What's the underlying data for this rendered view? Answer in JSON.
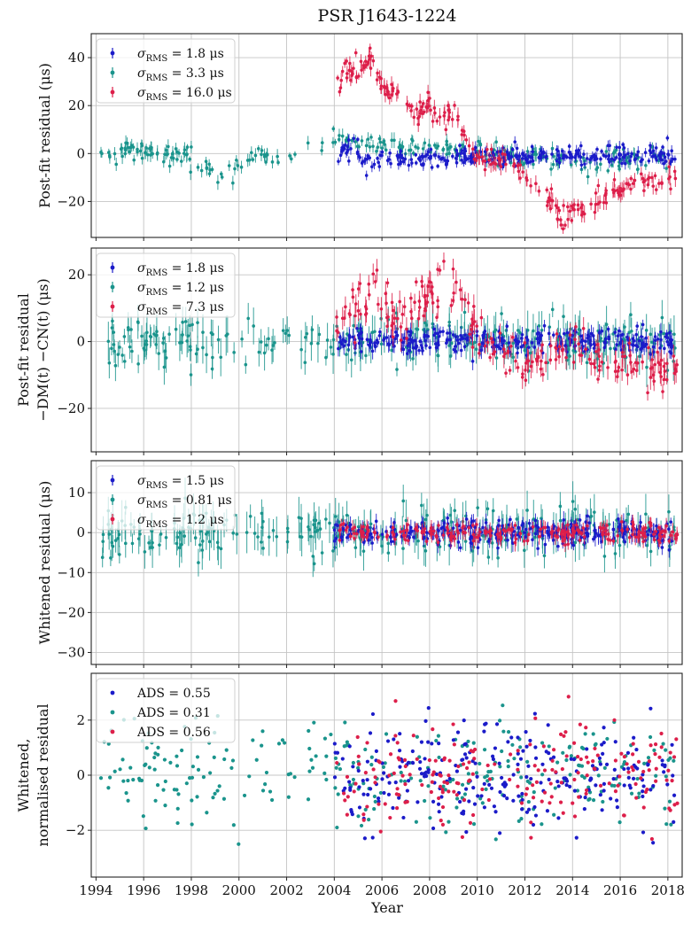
{
  "figure": {
    "title": "PSR J1643-1224",
    "xlabel": "Year"
  },
  "colors": {
    "blue": "#1b1bc9",
    "teal": "#1a948c",
    "red": "#dd1f4a"
  },
  "chart_data": [
    {
      "type": "scatter",
      "panel": "post-fit",
      "ylabel": [
        "Post-fit residual (μs)"
      ],
      "xlim": [
        1993.8,
        2018.6
      ],
      "ylim": [
        -35,
        50
      ],
      "xticks": [
        1994,
        1996,
        1998,
        2000,
        2002,
        2004,
        2006,
        2008,
        2010,
        2012,
        2014,
        2016,
        2018
      ],
      "yticks": [
        -20,
        0,
        20,
        40
      ],
      "legend": {
        "placement": "top-left",
        "entries": [
          {
            "pre": "σ",
            "sub": "RMS",
            "post": " = 1.8 μs",
            "color": "blue"
          },
          {
            "pre": "σ",
            "sub": "RMS",
            "post": " = 3.3 μs",
            "color": "teal"
          },
          {
            "pre": "σ",
            "sub": "RMS",
            "post": " = 16.0 μs",
            "color": "red"
          }
        ]
      },
      "series": [
        {
          "name": "σRMS = 1.8 μs",
          "color": "blue",
          "errorbars": true,
          "x_range": [
            2004.0,
            2018.3
          ],
          "n": 300,
          "seed": 11,
          "trend_x": [
            2004.0,
            2004.6,
            2005.2,
            2006.0,
            2007.0,
            2008.0,
            2009.0,
            2010.0,
            2012.0,
            2014.0,
            2016.0,
            2018.3
          ],
          "trend_y": [
            -1,
            2,
            -3,
            -2,
            -2,
            -2,
            -1,
            -1,
            -1,
            -1,
            -1,
            -1
          ],
          "scatter": 2.0,
          "err": 1.8
        },
        {
          "name": "σRMS = 3.3 μs",
          "color": "teal",
          "errorbars": true,
          "x_range": [
            1994.2,
            2018.3
          ],
          "n": 280,
          "seed": 23,
          "trend_x": [
            1994.2,
            1995.0,
            1996.0,
            1997.0,
            1998.0,
            1999.0,
            2000.5,
            2002.0,
            2003.0,
            2004.3,
            2005.5,
            2007.0,
            2008.5,
            2009.5,
            2010.5,
            2012.0,
            2014.0,
            2015.0,
            2016.0,
            2017.0,
            2018.3
          ],
          "trend_y": [
            0,
            0,
            2,
            0,
            -2,
            -8,
            -2,
            -1,
            3,
            6,
            4,
            3,
            2,
            1,
            0,
            -1,
            -4,
            -5,
            -3,
            -2,
            -1
          ],
          "scatter": 2.0,
          "err": 2.2
        },
        {
          "name": "σRMS = 16.0 μs",
          "color": "red",
          "errorbars": true,
          "x_range": [
            2004.1,
            2018.4
          ],
          "n": 230,
          "seed": 37,
          "trend_x": [
            2004.1,
            2004.6,
            2005.0,
            2005.5,
            2006.0,
            2006.8,
            2007.5,
            2008.0,
            2008.3,
            2009.0,
            2009.5,
            2010.0,
            2011.0,
            2012.0,
            2013.0,
            2013.6,
            2014.5,
            2015.5,
            2016.5,
            2017.5,
            2018.4
          ],
          "trend_y": [
            28,
            36,
            34,
            40,
            28,
            24,
            16,
            22,
            14,
            18,
            8,
            -2,
            -4,
            -10,
            -20,
            -27,
            -22,
            -16,
            -14,
            -12,
            -10
          ],
          "scatter": 2.5,
          "err": 2.5
        }
      ]
    },
    {
      "type": "scatter",
      "panel": "post-fit minus DM and CN",
      "ylabel": [
        "Post-fit residual",
        "−DM(t) −CN(t) (μs)"
      ],
      "xlim": [
        1993.8,
        2018.6
      ],
      "ylim": [
        -33,
        28
      ],
      "xticks": [
        1994,
        1996,
        1998,
        2000,
        2002,
        2004,
        2006,
        2008,
        2010,
        2012,
        2014,
        2016,
        2018
      ],
      "yticks": [
        -20,
        0,
        20
      ],
      "legend": {
        "placement": "top-left",
        "entries": [
          {
            "pre": "σ",
            "sub": "RMS",
            "post": " = 1.8 μs",
            "color": "blue"
          },
          {
            "pre": "σ",
            "sub": "RMS",
            "post": " = 1.2 μs",
            "color": "teal"
          },
          {
            "pre": "σ",
            "sub": "RMS",
            "post": " = 7.3 μs",
            "color": "red"
          }
        ]
      },
      "series": [
        {
          "name": "σRMS = 1.8 μs",
          "color": "blue",
          "errorbars": true,
          "x_range": [
            2004.0,
            2018.3
          ],
          "n": 300,
          "seed": 41,
          "trend_x": [
            2004.0,
            2018.3
          ],
          "trend_y": [
            0,
            0
          ],
          "scatter": 1.8,
          "err": 1.8
        },
        {
          "name": "σRMS = 1.2 μs",
          "color": "teal",
          "errorbars": true,
          "x_range": [
            1994.2,
            2018.3
          ],
          "n": 280,
          "seed": 53,
          "trend_x": [
            1994.2,
            2004.0,
            2005.0,
            2018.3
          ],
          "trend_y": [
            0,
            0,
            0,
            0
          ],
          "scatter": 3.5,
          "err": 4.0
        },
        {
          "name": "σRMS = 7.3 μs",
          "color": "red",
          "errorbars": true,
          "x_range": [
            2004.1,
            2018.4
          ],
          "n": 220,
          "seed": 67,
          "trend_x": [
            2004.1,
            2005.0,
            2005.5,
            2006.5,
            2007.5,
            2008.0,
            2008.5,
            2009.2,
            2009.8,
            2010.5,
            2012.0,
            2013.0,
            2014.0,
            2015.0,
            2016.0,
            2017.0,
            2018.4
          ],
          "trend_y": [
            5,
            10,
            18,
            6,
            10,
            14,
            20,
            14,
            4,
            0,
            -8,
            -4,
            -2,
            -6,
            -6,
            -8,
            -8
          ],
          "scatter": 3.0,
          "err": 2.5
        }
      ]
    },
    {
      "type": "scatter",
      "panel": "whitened",
      "ylabel": [
        "Whitened residual (μs)"
      ],
      "xlim": [
        1993.8,
        2018.6
      ],
      "ylim": [
        -33,
        18
      ],
      "xticks": [
        1994,
        1996,
        1998,
        2000,
        2002,
        2004,
        2006,
        2008,
        2010,
        2012,
        2014,
        2016,
        2018
      ],
      "yticks": [
        -30,
        -20,
        -10,
        0,
        10
      ],
      "legend": {
        "placement": "top-left",
        "entries": [
          {
            "pre": "σ",
            "sub": "RMS",
            "post": " = 1.5 μs",
            "color": "blue"
          },
          {
            "pre": "σ",
            "sub": "RMS",
            "post": " = 0.81 μs",
            "color": "teal"
          },
          {
            "pre": "σ",
            "sub": "RMS",
            "post": " = 1.2 μs",
            "color": "red"
          }
        ]
      },
      "series": [
        {
          "name": "σRMS = 1.5 μs",
          "color": "blue",
          "errorbars": true,
          "x_range": [
            2004.0,
            2018.3
          ],
          "n": 300,
          "seed": 71,
          "trend_x": [
            2004.0,
            2018.3
          ],
          "trend_y": [
            0,
            0
          ],
          "scatter": 1.5,
          "err": 1.6
        },
        {
          "name": "σRMS = 0.81 μs",
          "color": "teal",
          "errorbars": true,
          "x_range": [
            1994.2,
            2018.3
          ],
          "n": 280,
          "seed": 83,
          "trend_x": [
            1994.2,
            2004.0,
            2004.5,
            2018.3
          ],
          "trend_y": [
            0,
            0,
            0,
            0
          ],
          "scatter": 3.0,
          "err": 3.5
        },
        {
          "name": "σRMS = 1.2 μs",
          "color": "red",
          "errorbars": true,
          "x_range": [
            2004.1,
            2018.4
          ],
          "n": 220,
          "seed": 97,
          "trend_x": [
            2004.1,
            2018.4
          ],
          "trend_y": [
            0,
            0
          ],
          "scatter": 1.2,
          "err": 1.5
        }
      ]
    },
    {
      "type": "scatter",
      "panel": "whitened normalised",
      "ylabel": [
        "Whitened,",
        "normalised residual"
      ],
      "xlim": [
        1993.8,
        2018.6
      ],
      "ylim": [
        -3.7,
        3.7
      ],
      "xticks": [
        1994,
        1996,
        1998,
        2000,
        2002,
        2004,
        2006,
        2008,
        2010,
        2012,
        2014,
        2016,
        2018
      ],
      "yticks": [
        -2,
        0,
        2
      ],
      "legend": {
        "placement": "top-left",
        "entries": [
          {
            "pre": "ADS",
            "sub": "",
            "post": " = 0.55",
            "color": "blue"
          },
          {
            "pre": "ADS",
            "sub": "",
            "post": " = 0.31",
            "color": "teal"
          },
          {
            "pre": "ADS",
            "sub": "",
            "post": " = 0.56",
            "color": "red"
          }
        ]
      },
      "series": [
        {
          "name": "ADS = 0.55",
          "color": "blue",
          "errorbars": false,
          "x_range": [
            2004.0,
            2018.3
          ],
          "n": 260,
          "seed": 101,
          "trend_x": [
            2004.0,
            2018.3
          ],
          "trend_y": [
            0,
            0
          ],
          "scatter": 0.95,
          "err": 0
        },
        {
          "name": "ADS = 0.31",
          "color": "teal",
          "errorbars": false,
          "x_range": [
            1994.2,
            2018.3
          ],
          "n": 300,
          "seed": 113,
          "trend_x": [
            1994.2,
            2018.3
          ],
          "trend_y": [
            0,
            0
          ],
          "scatter": 1.0,
          "err": 0
        },
        {
          "name": "ADS = 0.56",
          "color": "red",
          "errorbars": false,
          "x_range": [
            2004.1,
            2018.4
          ],
          "n": 200,
          "seed": 127,
          "trend_x": [
            2004.1,
            2018.4
          ],
          "trend_y": [
            0,
            0
          ],
          "scatter": 0.95,
          "err": 0
        }
      ]
    }
  ]
}
